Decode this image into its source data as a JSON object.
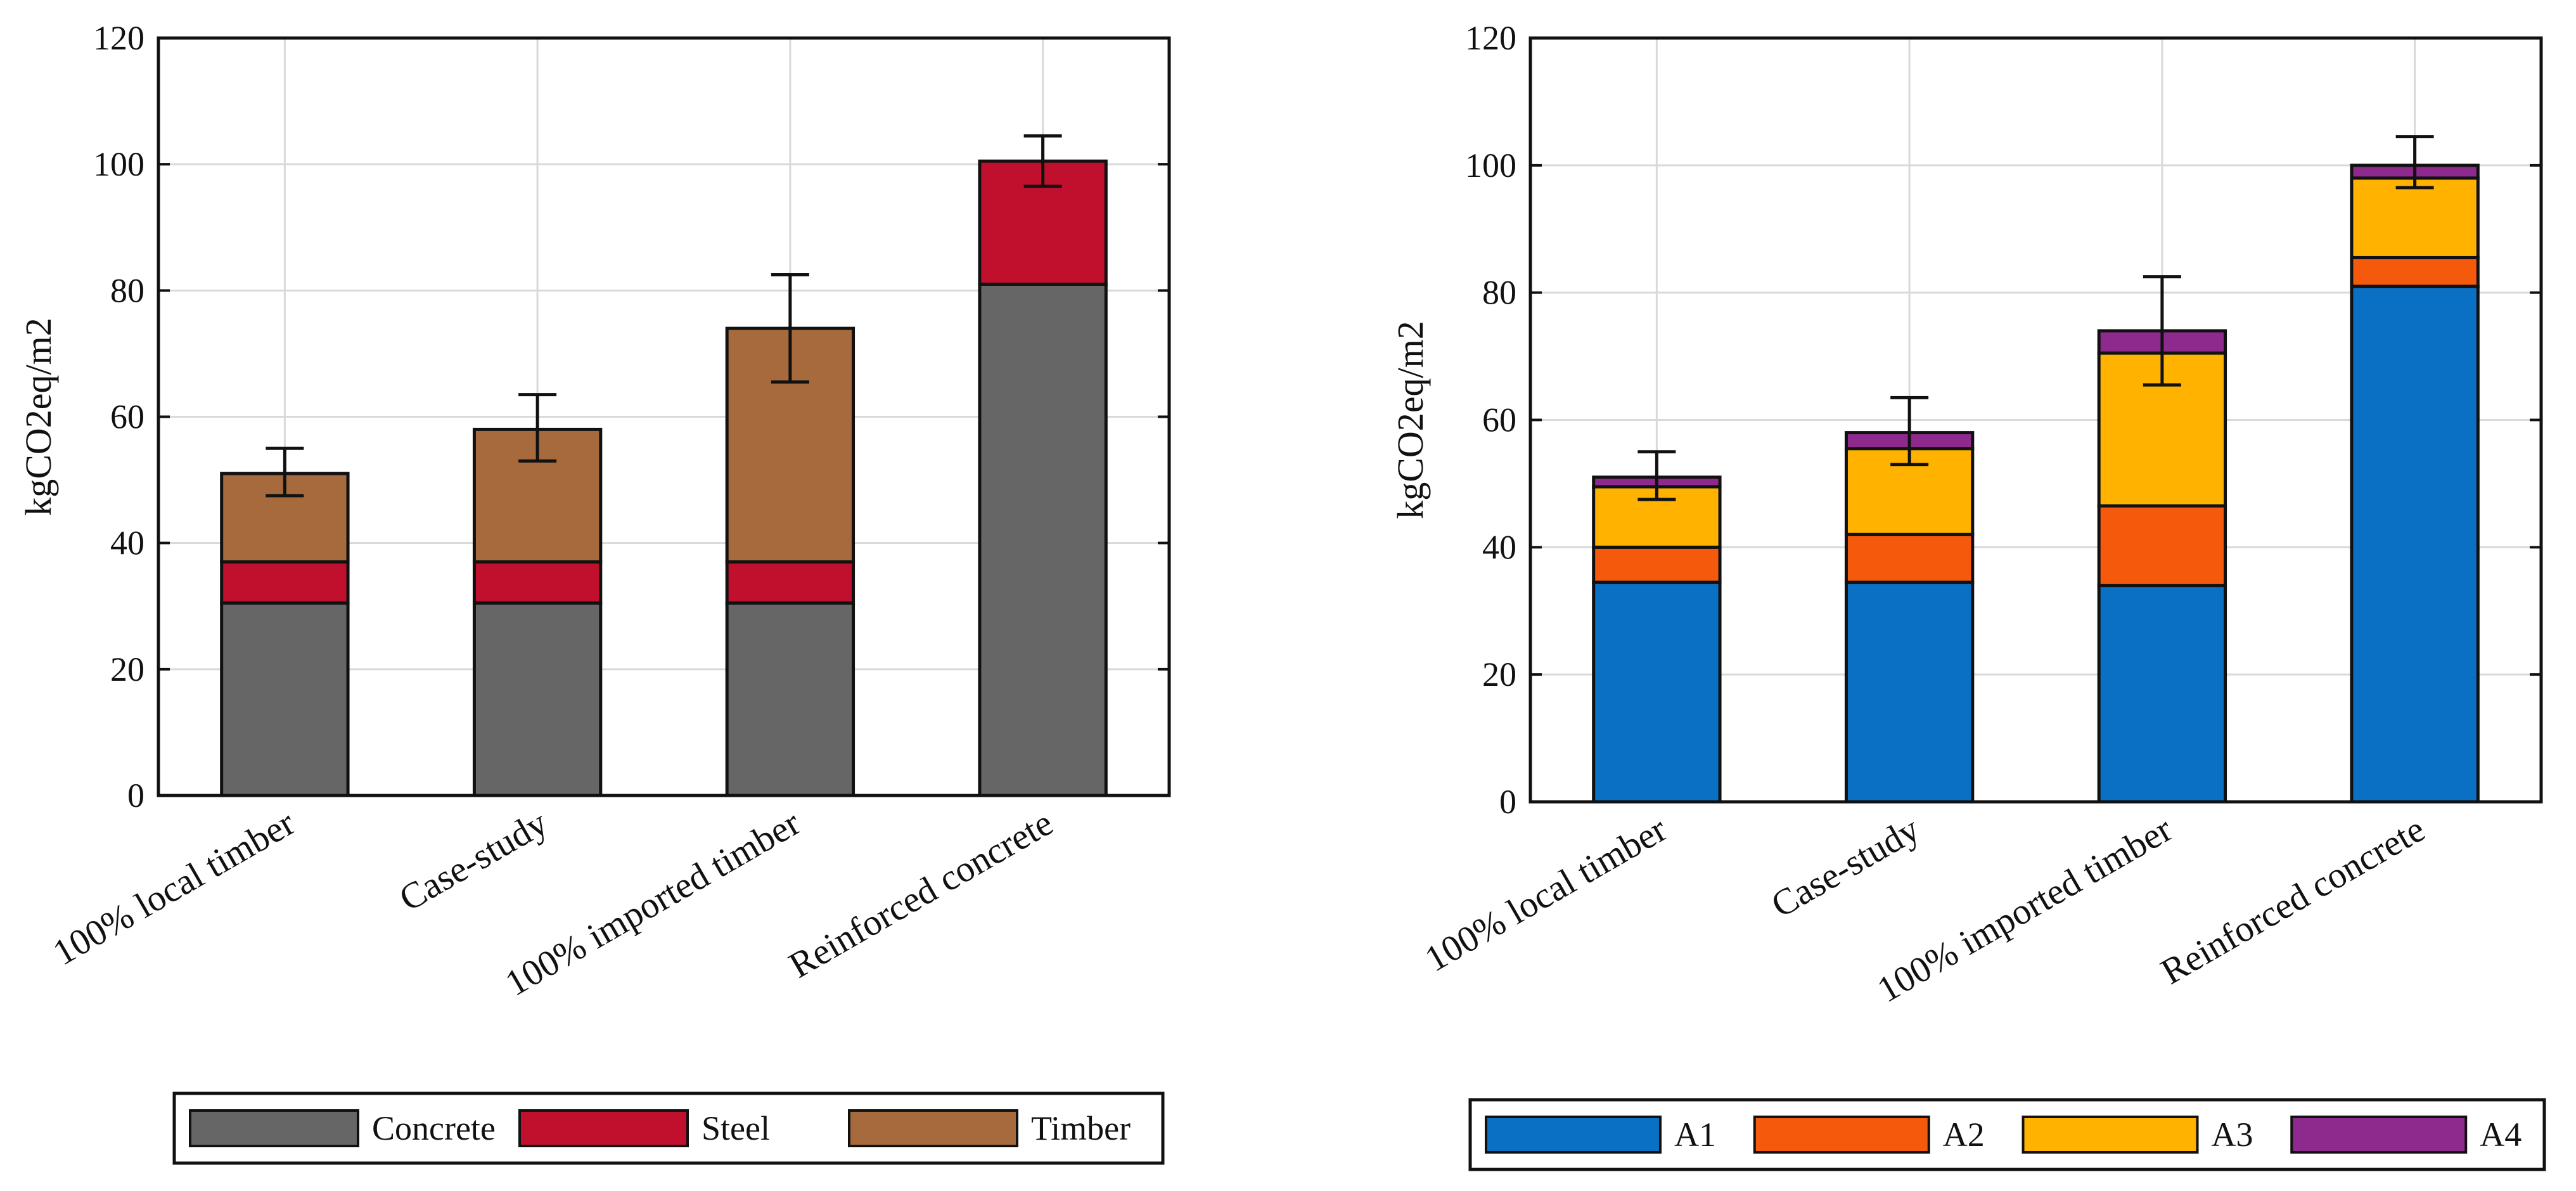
{
  "chart_data": [
    {
      "type": "bar",
      "stacked": true,
      "title": "",
      "xlabel": "",
      "ylabel": "kgCO2eq/m2",
      "ylim": [
        0,
        120
      ],
      "yticks": [
        0,
        20,
        40,
        60,
        80,
        100,
        120
      ],
      "grid": true,
      "legend_position": "bottom",
      "categories": [
        "100% local timber",
        "Case-study",
        "100% imported timber",
        "Reinforced concrete"
      ],
      "series": [
        {
          "name": "Concrete",
          "color": "#666666",
          "values": [
            30.5,
            30.5,
            30.5,
            81
          ]
        },
        {
          "name": "Steel",
          "color": "#c0102e",
          "values": [
            6.5,
            6.5,
            6.5,
            19.5
          ]
        },
        {
          "name": "Timber",
          "color": "#a66a3c",
          "values": [
            14,
            21,
            37,
            0
          ]
        }
      ],
      "error_bars": [
        {
          "low": 47.5,
          "high": 55
        },
        {
          "low": 53,
          "high": 63.5
        },
        {
          "low": 65.5,
          "high": 82.5
        },
        {
          "low": 96.5,
          "high": 104.5
        }
      ]
    },
    {
      "type": "bar",
      "stacked": true,
      "title": "",
      "xlabel": "",
      "ylabel": "kgCO2eq/m2",
      "ylim": [
        0,
        120
      ],
      "yticks": [
        0,
        20,
        40,
        60,
        80,
        100,
        120
      ],
      "grid": true,
      "legend_position": "bottom",
      "categories": [
        "100% local timber",
        "Case-study",
        "100% imported timber",
        "Reinforced concrete"
      ],
      "series": [
        {
          "name": "A1",
          "color": "#0a70c4",
          "values": [
            34.5,
            34.5,
            34,
            81
          ]
        },
        {
          "name": "A2",
          "color": "#f55a0c",
          "values": [
            5.5,
            7.5,
            12.5,
            4.5
          ]
        },
        {
          "name": "A3",
          "color": "#ffb300",
          "values": [
            9.5,
            13.5,
            24,
            12.5
          ]
        },
        {
          "name": "A4",
          "color": "#8e2a8e",
          "values": [
            1.5,
            2.5,
            3.5,
            2
          ]
        }
      ],
      "error_bars": [
        {
          "low": 47.5,
          "high": 55
        },
        {
          "low": 53,
          "high": 63.5
        },
        {
          "low": 65.5,
          "high": 82.5
        },
        {
          "low": 96.5,
          "high": 104.5
        }
      ]
    }
  ]
}
